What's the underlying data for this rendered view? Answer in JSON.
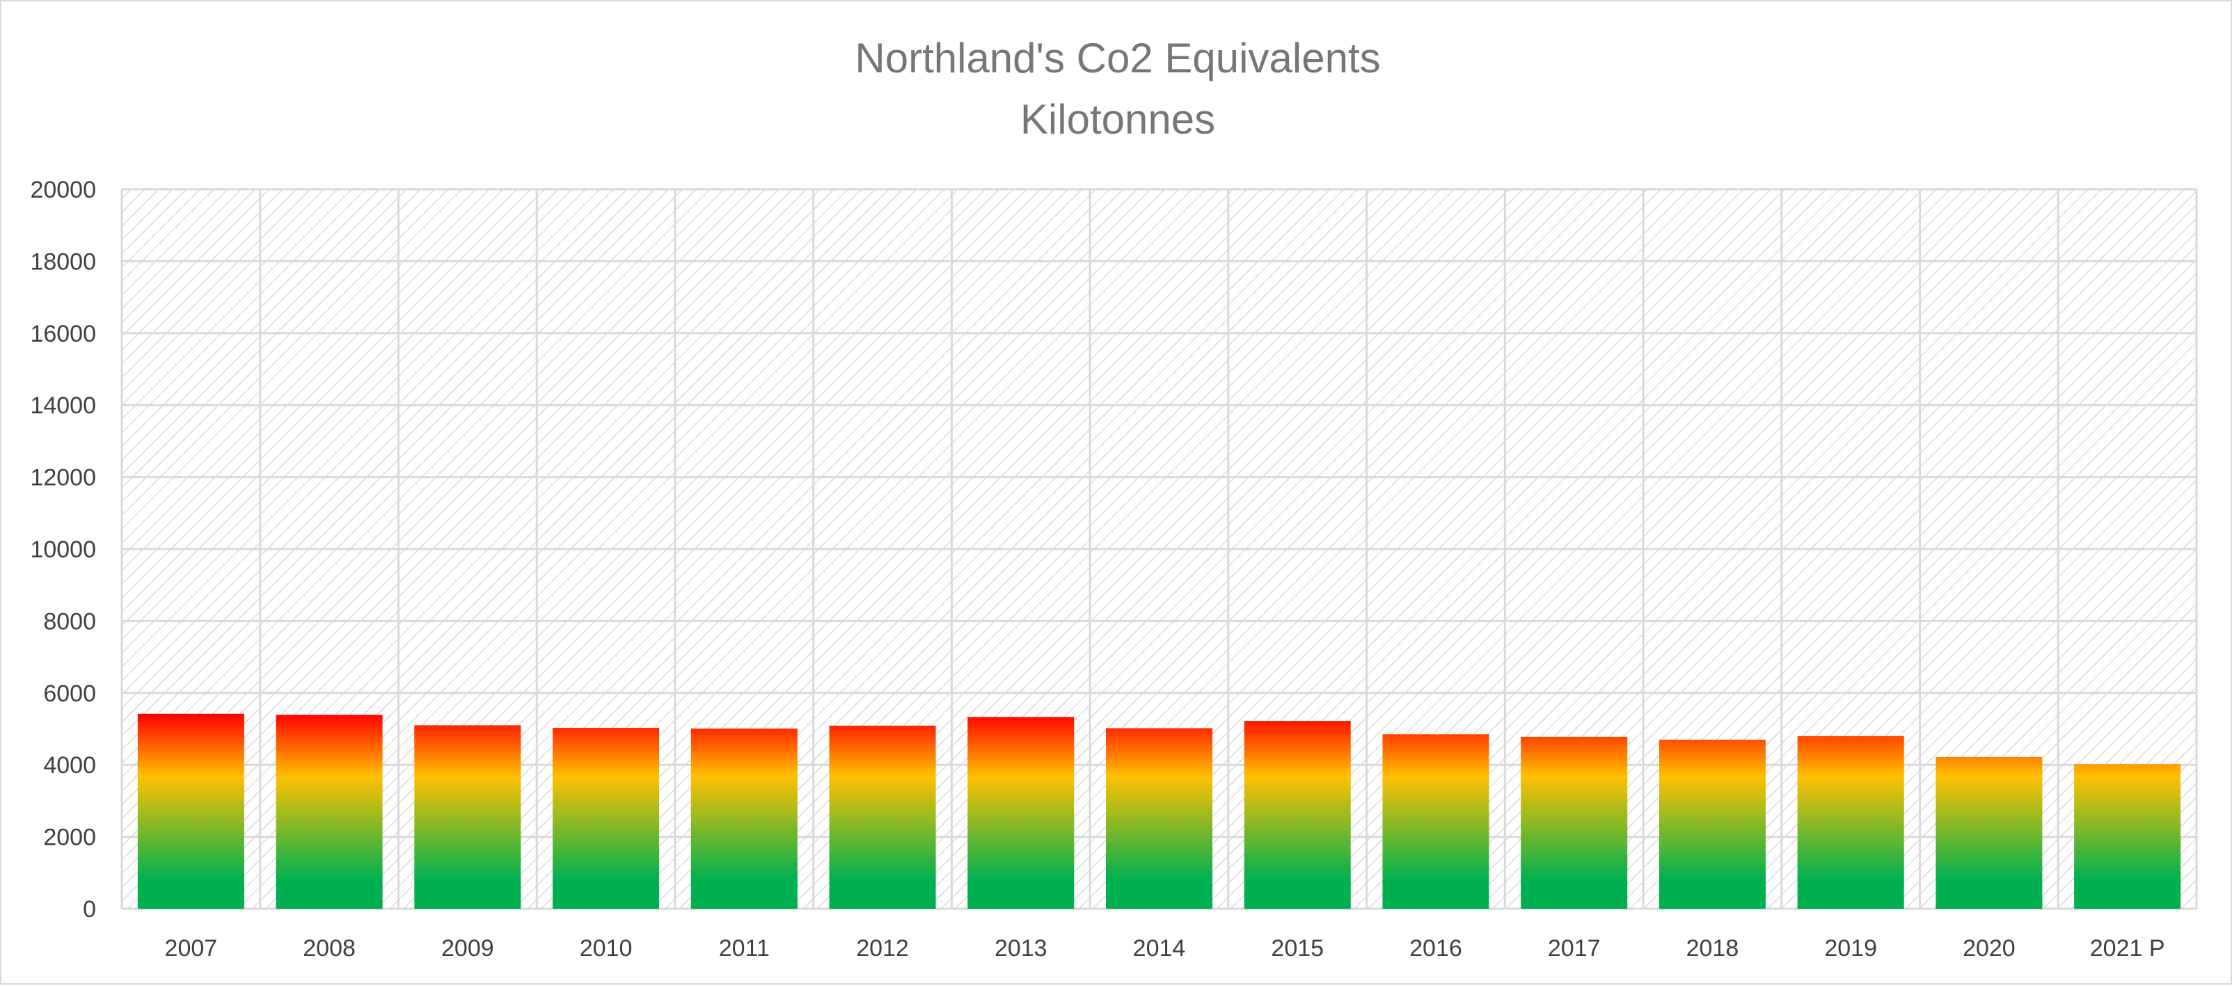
{
  "chart_data": {
    "type": "bar",
    "title": "Northland's Co2 Equivalents",
    "subtitle": "Kilotonnes",
    "xlabel": "",
    "ylabel": "",
    "categories": [
      "2007",
      "2008",
      "2009",
      "2010",
      "2011",
      "2012",
      "2013",
      "2014",
      "2015",
      "2016",
      "2017",
      "2018",
      "2019",
      "2020",
      "2021 P"
    ],
    "values": [
      5420,
      5390,
      5100,
      5030,
      5010,
      5090,
      5330,
      5020,
      5220,
      4850,
      4780,
      4700,
      4800,
      4220,
      4020
    ],
    "ylim": [
      0,
      20000
    ],
    "yticks": [
      0,
      2000,
      4000,
      6000,
      8000,
      10000,
      12000,
      14000,
      16000,
      18000,
      20000
    ],
    "grid": true,
    "legend": "none",
    "colors": {
      "bar_gradient_top": "#ff0000",
      "bar_gradient_mid": "#ffc000",
      "bar_gradient_bottom": "#00b050",
      "gridline": "#d9d9d9",
      "plot_hatch": "#d9d9d9"
    }
  }
}
